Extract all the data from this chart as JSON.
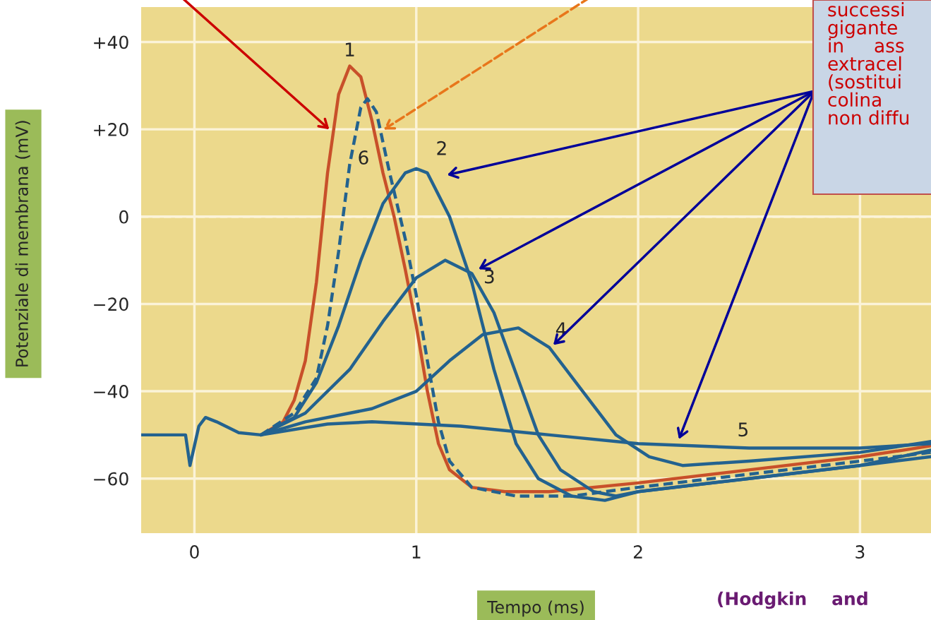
{
  "chart_data": {
    "type": "line",
    "xlabel": "Tempo (ms)",
    "ylabel": "Potenziale di membrana (mV)",
    "xlim": [
      -0.24,
      3.32
    ],
    "ylim": [
      -72.5,
      48
    ],
    "xticks": [
      0,
      1,
      2,
      3
    ],
    "yticks": [
      {
        "value": 40,
        "label": "+40"
      },
      {
        "value": 20,
        "label": "+20"
      },
      {
        "value": 0,
        "label": "0"
      },
      {
        "value": -20,
        "label": "−20"
      },
      {
        "value": -40,
        "label": "−40"
      },
      {
        "value": -60,
        "label": "−60"
      }
    ],
    "grid": true,
    "marker": "none",
    "ref_lines": [
      {
        "axis": "y",
        "value": 0,
        "color": "#fbf3d8",
        "line_style": "dashed"
      }
    ],
    "series": [
      {
        "color": "#c8502a",
        "line_style": "solid",
        "x": [
          0.3,
          0.4,
          0.45,
          0.5,
          0.55,
          0.6,
          0.65,
          0.7,
          0.75,
          0.8,
          0.85,
          0.9,
          0.95,
          1.0,
          1.05,
          1.1,
          1.15,
          1.25,
          1.4,
          1.6,
          2.0,
          2.5,
          3.0,
          3.32
        ],
        "values": [
          -50,
          -47,
          -42,
          -33,
          -15,
          10,
          28,
          34.5,
          32,
          22,
          10,
          0,
          -12,
          -25,
          -40,
          -52,
          -58,
          -62,
          -63,
          -63,
          -61,
          -58,
          -55,
          -52.5
        ]
      },
      {
        "color": "#23628f",
        "line_style": "solid",
        "x": [
          -0.24,
          -0.04,
          -0.02,
          0.02,
          0.05,
          0.1,
          0.2,
          0.3,
          0.45,
          0.55,
          0.65,
          0.75,
          0.85,
          0.95,
          1.0,
          1.05,
          1.15,
          1.25,
          1.35,
          1.45,
          1.55,
          1.7,
          1.85,
          2.0,
          2.5,
          3.0,
          3.32
        ],
        "values": [
          -50,
          -50,
          -57,
          -48,
          -46,
          -47,
          -49.5,
          -50,
          -46,
          -38,
          -25,
          -10,
          3,
          10,
          11,
          10,
          0,
          -15,
          -35,
          -52,
          -60,
          -64,
          -65,
          -63,
          -60,
          -57,
          -55
        ]
      },
      {
        "color": "#23628f",
        "line_style": "solid",
        "x": [
          0.3,
          0.5,
          0.7,
          0.85,
          1.0,
          1.13,
          1.25,
          1.35,
          1.45,
          1.55,
          1.65,
          1.8,
          1.9,
          2.0,
          2.5,
          3.0,
          3.32
        ],
        "values": [
          -50,
          -45,
          -35,
          -24,
          -14,
          -10,
          -13,
          -22,
          -36,
          -50,
          -58,
          -63,
          -64,
          -63,
          -60,
          -57,
          -53.5
        ]
      },
      {
        "color": "#23628f",
        "line_style": "solid",
        "x": [
          0.3,
          0.5,
          0.8,
          1.0,
          1.15,
          1.3,
          1.46,
          1.6,
          1.75,
          1.9,
          2.05,
          2.2,
          2.5,
          3.0,
          3.32
        ],
        "values": [
          -50,
          -47,
          -44,
          -40,
          -33,
          -27,
          -25.5,
          -30,
          -40,
          -50,
          -55,
          -57,
          -56,
          -54,
          -51.5
        ]
      },
      {
        "color": "#23628f",
        "line_style": "solid",
        "x": [
          0.3,
          0.6,
          0.8,
          1.2,
          1.6,
          2.0,
          2.5,
          3.0,
          3.32
        ],
        "values": [
          -50,
          -47.5,
          -47,
          -48,
          -50,
          -52,
          -53,
          -53,
          -52
        ]
      },
      {
        "color": "#23628f",
        "line_style": "dashed",
        "x": [
          0.3,
          0.45,
          0.55,
          0.6,
          0.65,
          0.7,
          0.75,
          0.78,
          0.82,
          0.88,
          0.95,
          1.0,
          1.05,
          1.1,
          1.15,
          1.25,
          1.45,
          1.7,
          2.0,
          2.5,
          3.0,
          3.32
        ],
        "values": [
          -50,
          -45,
          -37,
          -25,
          -8,
          12,
          25,
          27,
          24,
          10,
          -5,
          -18,
          -33,
          -47,
          -56,
          -62,
          -64,
          -64,
          -62,
          -59,
          -56,
          -54
        ]
      }
    ],
    "annotations": [
      {
        "text": "1",
        "x": 0.7,
        "y": 34.5
      },
      {
        "text": "6",
        "x": 0.7,
        "y": 12
      },
      {
        "text": "2",
        "x": 1.0,
        "y": 11
      },
      {
        "text": "3",
        "x": 1.25,
        "y": -13
      },
      {
        "text": "4",
        "x": 1.6,
        "y": -30
      },
      {
        "text": "5",
        "x": 2.5,
        "y": -53
      },
      "successi\ngigante\nin     ass\nextracel\n(sostitui\ncolina\nnon diffu",
      "(Hodgkin    and"
    ]
  }
}
